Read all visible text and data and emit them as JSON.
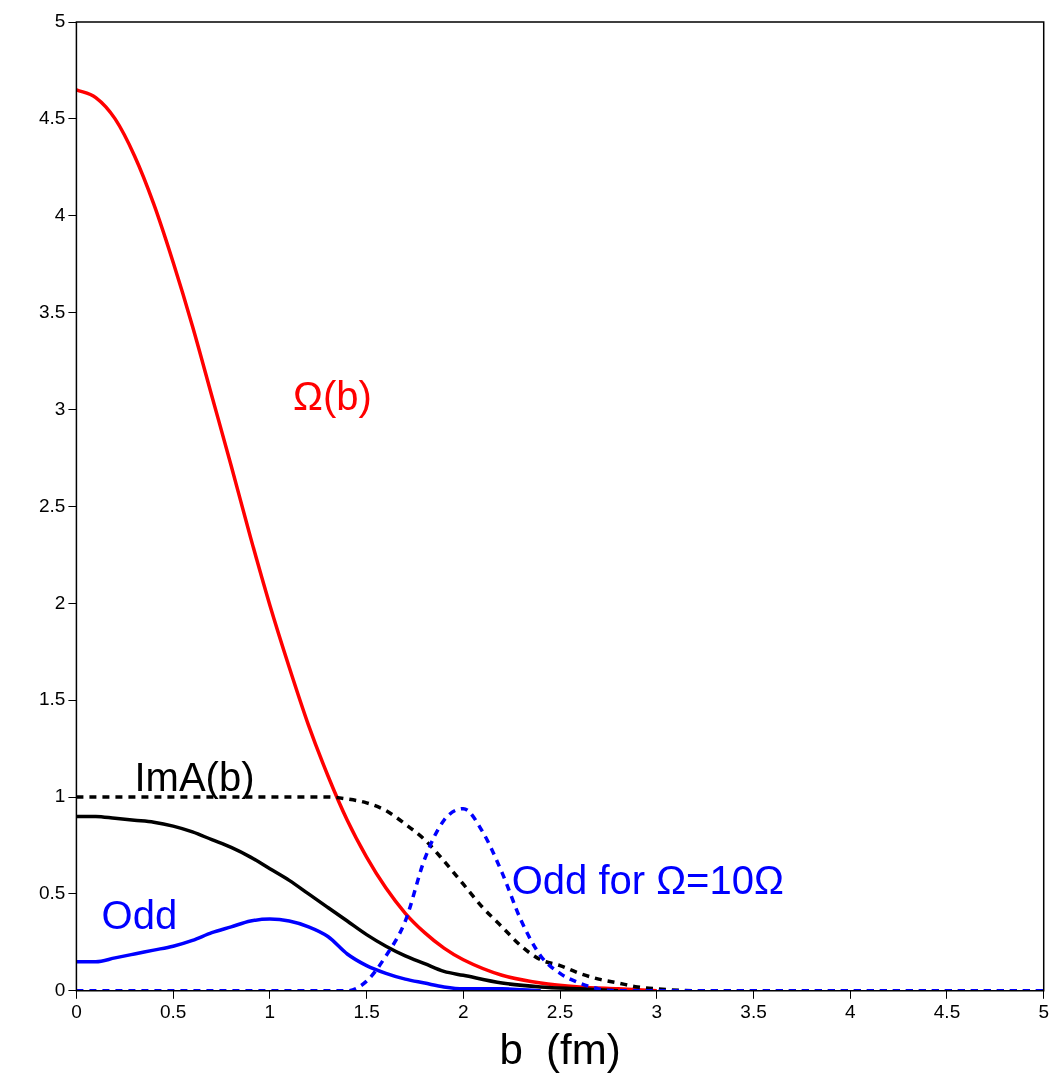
{
  "chart_data": {
    "type": "line",
    "xlabel": "b  (fm)",
    "series": [
      {
        "name": "Ω(b)",
        "color": "#ff0000",
        "x": [
          0,
          0.1,
          0.2,
          0.3,
          0.4,
          0.5,
          0.6,
          0.7,
          0.8,
          0.9,
          1.0,
          1.1,
          1.2,
          1.3,
          1.4,
          1.5,
          1.6,
          1.7,
          1.8,
          1.9,
          2.0,
          2.2,
          2.4,
          2.6,
          2.8,
          3.0
        ],
        "values": [
          4.65,
          4.61,
          4.5,
          4.31,
          4.06,
          3.76,
          3.43,
          3.07,
          2.71,
          2.34,
          1.99,
          1.67,
          1.37,
          1.11,
          0.88,
          0.69,
          0.53,
          0.4,
          0.3,
          0.22,
          0.16,
          0.08,
          0.04,
          0.02,
          0.01,
          0
        ]
      },
      {
        "name": "ImA(b)",
        "color": "#000000",
        "x": [
          0,
          0.1,
          0.2,
          0.3,
          0.4,
          0.5,
          0.6,
          0.7,
          0.8,
          0.9,
          1.0,
          1.1,
          1.2,
          1.3,
          1.4,
          1.5,
          1.6,
          1.7,
          1.8,
          1.9,
          2.0,
          2.2,
          2.4,
          2.6,
          2.8
        ],
        "values": [
          0.9,
          0.9,
          0.89,
          0.88,
          0.87,
          0.85,
          0.82,
          0.78,
          0.74,
          0.69,
          0.63,
          0.57,
          0.5,
          0.43,
          0.36,
          0.29,
          0.23,
          0.18,
          0.14,
          0.1,
          0.08,
          0.04,
          0.02,
          0.01,
          0
        ]
      },
      {
        "color": "#000000",
        "line_style": "dashed",
        "x": [
          0,
          0.5,
          1.0,
          1.2,
          1.3,
          1.4,
          1.5,
          1.6,
          1.7,
          1.8,
          1.9,
          2.0,
          2.1,
          2.2,
          2.3,
          2.4,
          2.5,
          2.6,
          2.7,
          2.8,
          2.9,
          3.0,
          3.2,
          3.5,
          4,
          4.5,
          5
        ],
        "values": [
          1,
          1,
          1,
          1,
          1,
          0.99,
          0.97,
          0.93,
          0.86,
          0.78,
          0.67,
          0.55,
          0.43,
          0.33,
          0.23,
          0.16,
          0.13,
          0.09,
          0.06,
          0.04,
          0.02,
          0.01,
          0,
          0,
          0,
          0,
          0
        ]
      },
      {
        "name": "Odd",
        "color": "#0000ff",
        "x": [
          0,
          0.1,
          0.2,
          0.3,
          0.4,
          0.5,
          0.6,
          0.7,
          0.8,
          0.9,
          1.0,
          1.1,
          1.2,
          1.3,
          1.4,
          1.5,
          1.6,
          1.7,
          1.8,
          1.9,
          2.0,
          2.2,
          2.4
        ],
        "values": [
          0.15,
          0.15,
          0.17,
          0.19,
          0.21,
          0.23,
          0.26,
          0.3,
          0.33,
          0.36,
          0.37,
          0.36,
          0.33,
          0.28,
          0.19,
          0.13,
          0.09,
          0.06,
          0.04,
          0.02,
          0.01,
          0.01,
          0
        ]
      },
      {
        "name": "Odd for Ω=10Ω",
        "color": "#0000ff",
        "line_style": "dashed",
        "x": [
          0,
          0.5,
          1.0,
          1.3,
          1.4,
          1.5,
          1.6,
          1.7,
          1.8,
          1.9,
          2.0,
          2.1,
          2.2,
          2.3,
          2.4,
          2.5,
          2.6,
          2.7,
          2.8,
          3.0,
          3.5,
          4,
          4.5,
          5
        ],
        "values": [
          0,
          0,
          0,
          0,
          0,
          0.05,
          0.18,
          0.36,
          0.68,
          0.88,
          0.94,
          0.82,
          0.61,
          0.36,
          0.18,
          0.09,
          0.04,
          0.01,
          0,
          0,
          0,
          0,
          0,
          0
        ]
      }
    ],
    "xlim": [
      0,
      5
    ],
    "xticks": [
      0,
      0.5,
      1,
      1.5,
      2,
      2.5,
      3,
      3.5,
      4,
      4.5,
      5
    ],
    "ylim": [
      0,
      5
    ],
    "yticks": [
      0,
      0.5,
      1,
      1.5,
      2,
      2.5,
      3,
      3.5,
      4,
      4.5,
      5
    ],
    "grid": false,
    "legend": false,
    "marker": "none",
    "line_style": "solid"
  }
}
